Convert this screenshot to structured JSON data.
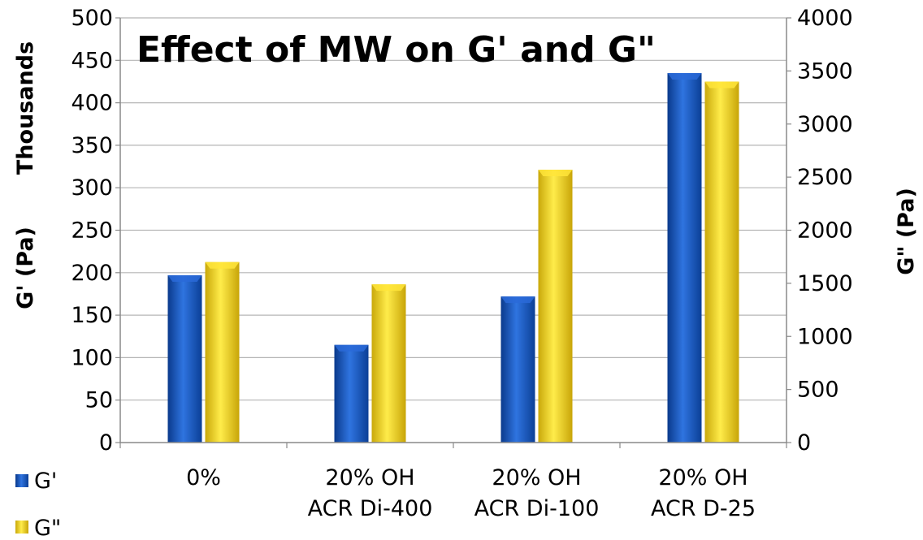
{
  "chart_data": {
    "type": "bar",
    "title": "Effect of MW on G' and G\"",
    "categories": [
      [
        "0%"
      ],
      [
        "20% OH",
        "ACR Di-400"
      ],
      [
        "20% OH",
        "ACR Di-100"
      ],
      [
        "20% OH",
        "ACR D-25"
      ]
    ],
    "series": [
      {
        "name": "G'",
        "axis": "left",
        "values": [
          197,
          115,
          172,
          435
        ],
        "color": "#1f5fc6"
      },
      {
        "name": "G\"",
        "axis": "right",
        "values": [
          1700,
          1490,
          2570,
          3400
        ],
        "color": "#f2d11c"
      }
    ],
    "y_left": {
      "label": "G' (Pa)",
      "unit_label": "Thousands",
      "ylim": [
        0,
        500
      ],
      "ticks": [
        "0",
        "50",
        "100",
        "150",
        "200",
        "250",
        "300",
        "350",
        "400",
        "450",
        "500"
      ]
    },
    "y_right": {
      "label": "G\" (Pa)",
      "ylim": [
        0,
        4000
      ],
      "ticks": [
        "0",
        "500",
        "1000",
        "1500",
        "2000",
        "2500",
        "3000",
        "3500",
        "4000"
      ]
    },
    "grid": true,
    "legend": "bottom-left"
  }
}
